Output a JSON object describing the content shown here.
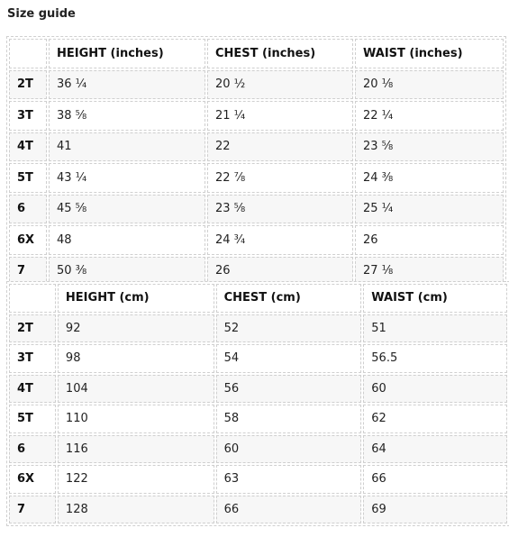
{
  "title": "Size guide",
  "inches": {
    "headers": [
      "",
      "HEIGHT (inches)",
      "CHEST (inches)",
      "WAIST (inches)"
    ],
    "rows": [
      [
        "2T",
        "36 ¼",
        "20 ½",
        "20 ⅛"
      ],
      [
        "3T",
        "38 ⅝",
        "21 ¼",
        "22 ¼"
      ],
      [
        "4T",
        "41",
        "22",
        "23 ⅝"
      ],
      [
        "5T",
        "43 ¼",
        "22 ⅞",
        "24 ⅜"
      ],
      [
        "6",
        "45 ⅝",
        "23 ⅝",
        "25 ¼"
      ],
      [
        "6X",
        "48",
        "24 ¾",
        "26"
      ],
      [
        "7",
        "50 ⅜",
        "26",
        "27 ⅛"
      ]
    ]
  },
  "cm": {
    "headers": [
      "",
      "HEIGHT (cm)",
      "CHEST (cm)",
      "WAIST (cm)"
    ],
    "rows": [
      [
        "2T",
        "92",
        "52",
        "51"
      ],
      [
        "3T",
        "98",
        "54",
        "56.5"
      ],
      [
        "4T",
        "104",
        "56",
        "60"
      ],
      [
        "5T",
        "110",
        "58",
        "62"
      ],
      [
        "6",
        "116",
        "60",
        "64"
      ],
      [
        "6X",
        "122",
        "63",
        "66"
      ],
      [
        "7",
        "128",
        "66",
        "69"
      ]
    ]
  }
}
